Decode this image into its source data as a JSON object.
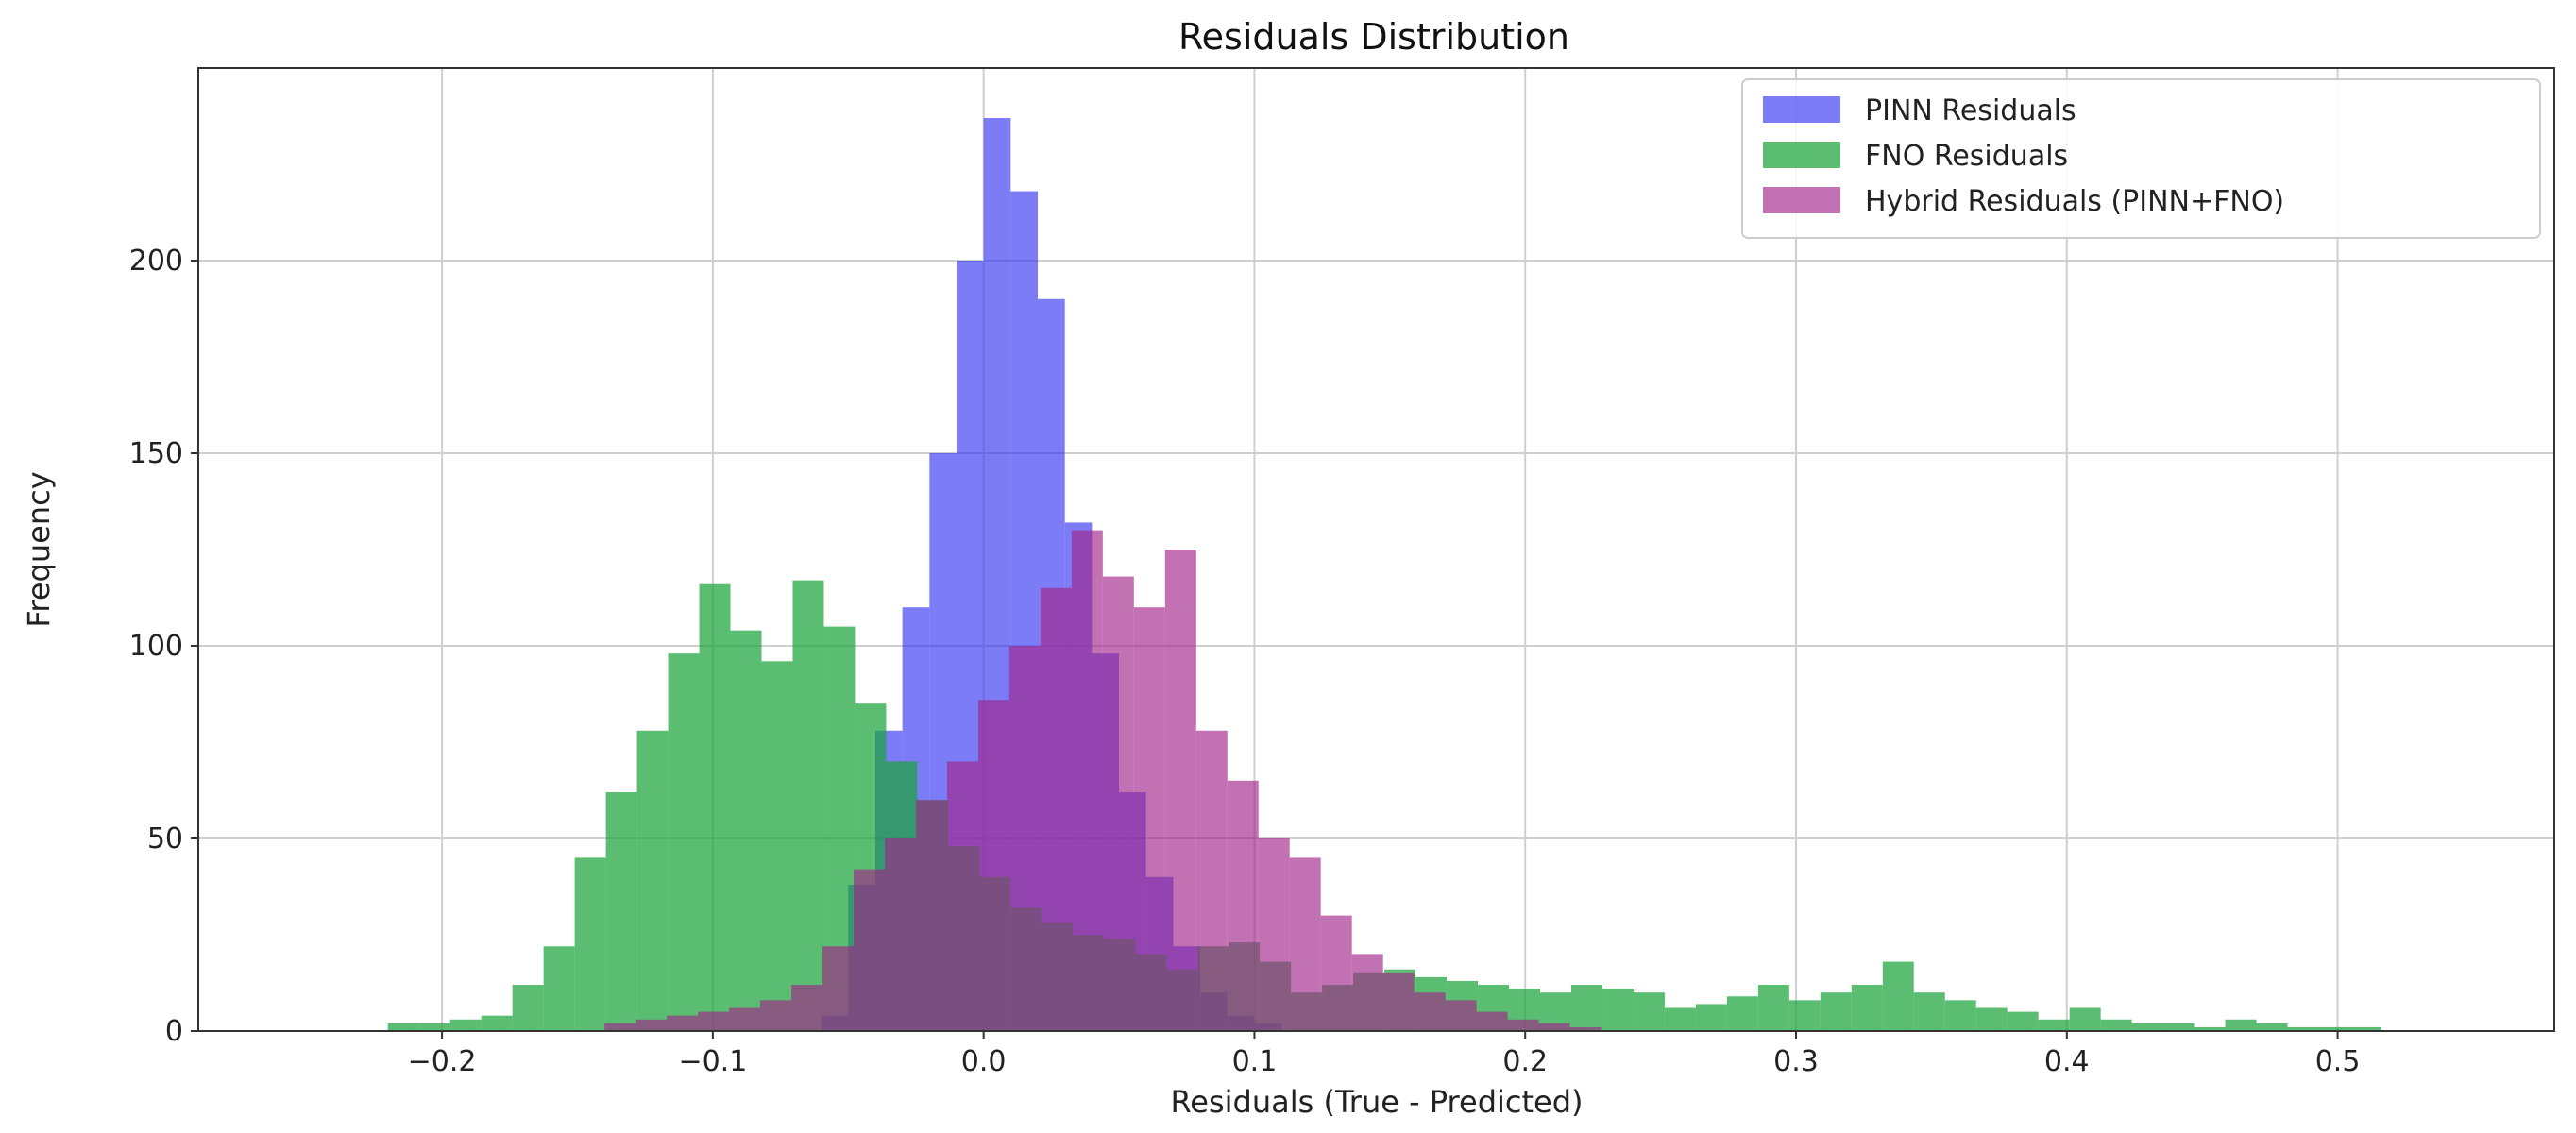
{
  "chart_data": {
    "type": "bar",
    "title": "Residuals Distribution",
    "xlabel": "Residuals (True - Predicted)",
    "ylabel": "Frequency",
    "xlim": [
      -0.29,
      0.58
    ],
    "ylim": [
      0,
      250
    ],
    "x_ticks": [
      -0.2,
      -0.1,
      0.0,
      0.1,
      0.2,
      0.3,
      0.4,
      0.5
    ],
    "x_tick_labels": [
      "−0.2",
      "−0.1",
      "0.0",
      "0.1",
      "0.2",
      "0.3",
      "0.4",
      "0.5"
    ],
    "y_ticks": [
      0,
      50,
      100,
      150,
      200
    ],
    "y_tick_labels": [
      "0",
      "50",
      "100",
      "150",
      "200"
    ],
    "grid": true,
    "legend_position": "top-right",
    "series": [
      {
        "name": "PINN Residuals",
        "color": "#2b2bf0",
        "opacity": 0.62,
        "bin_start": -0.06,
        "bin_width": 0.01,
        "counts": [
          4,
          38,
          78,
          110,
          150,
          200,
          237,
          218,
          190,
          132,
          98,
          62,
          40,
          22,
          10,
          4,
          2
        ]
      },
      {
        "name": "FNO Residuals",
        "color": "#1aa33a",
        "opacity": 0.72,
        "bin_start": -0.22,
        "bin_width": 0.0115,
        "counts": [
          2,
          2,
          3,
          4,
          12,
          22,
          45,
          62,
          78,
          98,
          116,
          104,
          96,
          117,
          105,
          85,
          70,
          60,
          48,
          40,
          32,
          28,
          25,
          24,
          20,
          16,
          22,
          23,
          18,
          10,
          12,
          15,
          16,
          14,
          13,
          12,
          11,
          10,
          12,
          11,
          10,
          6,
          7,
          9,
          12,
          8,
          10,
          12,
          18,
          10,
          8,
          6,
          5,
          3,
          6,
          3,
          2,
          2,
          1,
          3,
          2,
          1,
          1,
          1
        ]
      },
      {
        "name": "Hybrid Residuals (PINN+FNO)",
        "color": "#a2268a",
        "opacity": 0.65,
        "bin_start": -0.14,
        "bin_width": 0.0115,
        "counts": [
          2,
          3,
          4,
          5,
          6,
          8,
          12,
          22,
          42,
          50,
          60,
          70,
          86,
          100,
          115,
          130,
          118,
          110,
          125,
          78,
          65,
          50,
          45,
          30,
          20,
          15,
          10,
          8,
          5,
          3,
          2,
          1
        ]
      }
    ]
  }
}
